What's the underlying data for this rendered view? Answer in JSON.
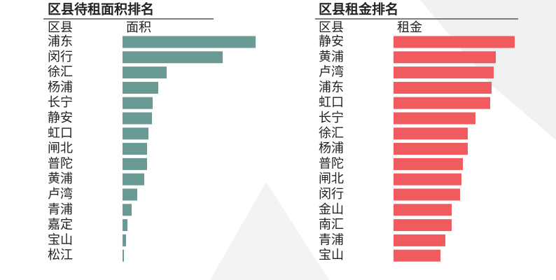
{
  "chart_data": [
    {
      "type": "hbar",
      "title": "区县待租面积排名",
      "category_header": "区县",
      "value_header": "面积",
      "color": "#6a9a94",
      "categories": [
        "浦东",
        "闵行",
        "徐汇",
        "杨浦",
        "长宁",
        "静安",
        "虹口",
        "闸北",
        "普陀",
        "黄浦",
        "卢湾",
        "青浦",
        "嘉定",
        "宝山",
        "松江"
      ],
      "values": [
        190,
        143,
        63,
        51,
        43,
        42,
        37,
        35,
        35,
        31,
        21,
        13,
        7,
        5,
        2
      ],
      "xlim": [
        0,
        190
      ]
    },
    {
      "type": "hbar",
      "title": "区县租金排名",
      "category_header": "区县",
      "value_header": "租金",
      "color": "#ef5b5e",
      "categories": [
        "静安",
        "黄浦",
        "卢湾",
        "浦东",
        "虹口",
        "长宁",
        "徐汇",
        "杨浦",
        "普陀",
        "闸北",
        "闵行",
        "金山",
        "南汇",
        "青浦",
        "宝山"
      ],
      "values": [
        173,
        146,
        143,
        140,
        138,
        117,
        106,
        106,
        99,
        97,
        95,
        83,
        83,
        74,
        67
      ],
      "xlim": [
        0,
        173
      ]
    }
  ]
}
